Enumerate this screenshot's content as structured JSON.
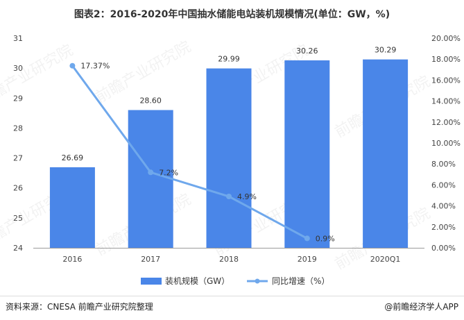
{
  "title": "图表2：2016-2020年中国抽水储能电站装机规模情况(单位：GW，%)",
  "source": "资料来源：CNESA 前瞻产业研究院整理",
  "brand": "@前瞻经济学人APP",
  "watermark_text": "前瞻产业研究院",
  "colors": {
    "bar": "#4A86E8",
    "line": "#6FA8EC",
    "grid": "#e6e6e6"
  },
  "chart_data": {
    "type": "bar",
    "categories": [
      "2016",
      "2017",
      "2018",
      "2019",
      "2020Q1"
    ],
    "series": [
      {
        "name": "装机规模（GW）",
        "type": "bar",
        "values": [
          26.69,
          28.6,
          29.99,
          30.26,
          30.29
        ],
        "labels": [
          "26.69",
          "28.60",
          "29.99",
          "30.26",
          "30.29"
        ]
      },
      {
        "name": "同比增速（%）",
        "type": "line",
        "values": [
          17.37,
          7.2,
          4.9,
          0.9,
          null
        ],
        "labels": [
          "17.37%",
          "7.2%",
          "4.9%",
          "0.9%",
          ""
        ]
      }
    ],
    "y_left": {
      "min": 24,
      "max": 31,
      "ticks": [
        "24",
        "25",
        "26",
        "27",
        "28",
        "29",
        "30",
        "31"
      ]
    },
    "y_right": {
      "min": 0,
      "max": 20,
      "ticks": [
        "0.00%",
        "2.00%",
        "4.00%",
        "6.00%",
        "8.00%",
        "10.00%",
        "12.00%",
        "14.00%",
        "16.00%",
        "18.00%",
        "20.00%"
      ]
    },
    "grid": false,
    "legend_position": "bottom"
  }
}
